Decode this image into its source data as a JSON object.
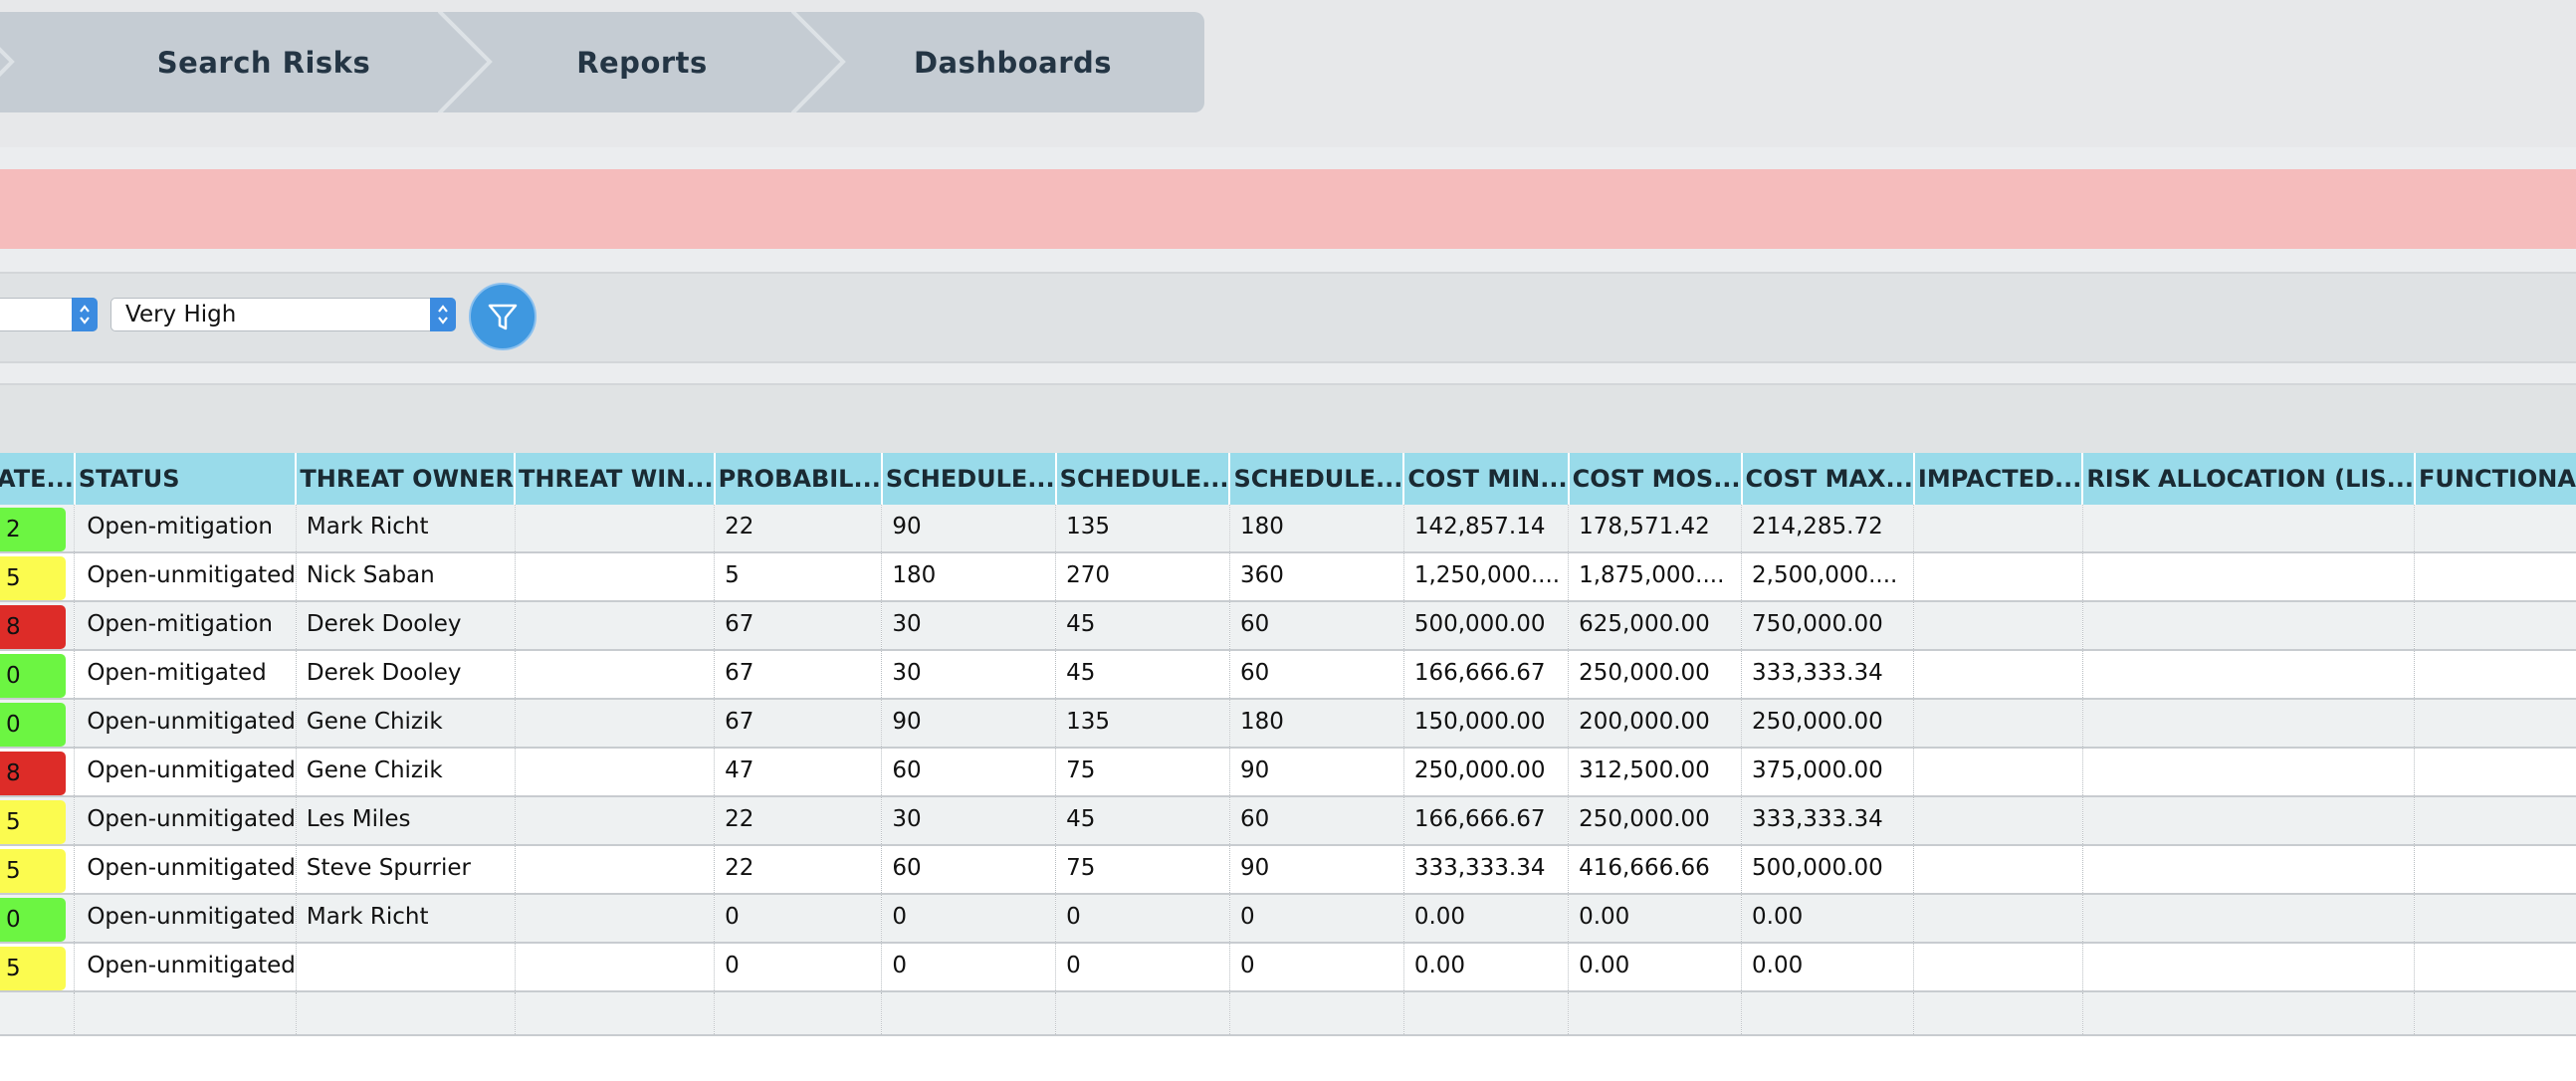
{
  "nav": {
    "items": [
      {
        "label": "Search Risks"
      },
      {
        "label": "Reports"
      },
      {
        "label": "Dashboards"
      }
    ]
  },
  "filters": {
    "first_select_value": "",
    "second_select_value": "Very High",
    "filter_button_icon": "filter-icon"
  },
  "colors": {
    "alert": "#f5bcbc",
    "header": "#99dbea",
    "green": "#6cf542",
    "yellow": "#fbfb4f",
    "red": "#dd2c28",
    "filter_button": "#3f98e0"
  },
  "table": {
    "headers": [
      "ATE...",
      "STATUS",
      "THREAT OWNER",
      "THREAT WIN...",
      "PROBABIL...",
      "SCHEDULE...",
      "SCHEDULE...",
      "SCHEDULE...",
      "COST MIN...",
      "COST MOS...",
      "COST MAX...",
      "IMPACTED...",
      "RISK ALLOCATION (LIS...",
      "FUNCTIONAL AS"
    ],
    "rows": [
      {
        "score": "2",
        "color": "green",
        "status": "Open-mitigation",
        "owner": "Mark Richt",
        "window": "",
        "prob": "22",
        "s1": "90",
        "s2": "135",
        "s3": "180",
        "c1": "142,857.14",
        "c2": "178,571.42",
        "c3": "214,285.72"
      },
      {
        "score": "5",
        "color": "yellow",
        "status": "Open-unmitigated",
        "owner": "Nick Saban",
        "window": "",
        "prob": "5",
        "s1": "180",
        "s2": "270",
        "s3": "360",
        "c1": "1,250,000....",
        "c2": "1,875,000....",
        "c3": "2,500,000...."
      },
      {
        "score": "8",
        "color": "red",
        "status": "Open-mitigation",
        "owner": "Derek Dooley",
        "window": "",
        "prob": "67",
        "s1": "30",
        "s2": "45",
        "s3": "60",
        "c1": "500,000.00",
        "c2": "625,000.00",
        "c3": "750,000.00"
      },
      {
        "score": "0",
        "color": "green",
        "status": "Open-mitigated",
        "owner": "Derek Dooley",
        "window": "",
        "prob": "67",
        "s1": "30",
        "s2": "45",
        "s3": "60",
        "c1": "166,666.67",
        "c2": "250,000.00",
        "c3": "333,333.34"
      },
      {
        "score": "0",
        "color": "green",
        "status": "Open-unmitigated",
        "owner": "Gene Chizik",
        "window": "",
        "prob": "67",
        "s1": "90",
        "s2": "135",
        "s3": "180",
        "c1": "150,000.00",
        "c2": "200,000.00",
        "c3": "250,000.00"
      },
      {
        "score": "8",
        "color": "red",
        "status": "Open-unmitigated",
        "owner": "Gene Chizik",
        "window": "",
        "prob": "47",
        "s1": "60",
        "s2": "75",
        "s3": "90",
        "c1": "250,000.00",
        "c2": "312,500.00",
        "c3": "375,000.00"
      },
      {
        "score": "5",
        "color": "yellow",
        "status": "Open-unmitigated",
        "owner": "Les Miles",
        "window": "",
        "prob": "22",
        "s1": "30",
        "s2": "45",
        "s3": "60",
        "c1": "166,666.67",
        "c2": "250,000.00",
        "c3": "333,333.34"
      },
      {
        "score": "5",
        "color": "yellow",
        "status": "Open-unmitigated",
        "owner": "Steve Spurrier",
        "window": "",
        "prob": "22",
        "s1": "60",
        "s2": "75",
        "s3": "90",
        "c1": "333,333.34",
        "c2": "416,666.66",
        "c3": "500,000.00"
      },
      {
        "score": "0",
        "color": "green",
        "status": "Open-unmitigated",
        "owner": "Mark Richt",
        "window": "",
        "prob": "0",
        "s1": "0",
        "s2": "0",
        "s3": "0",
        "c1": "0.00",
        "c2": "0.00",
        "c3": "0.00"
      },
      {
        "score": "5",
        "color": "yellow",
        "status": "Open-unmitigated",
        "owner": "",
        "window": "",
        "prob": "0",
        "s1": "0",
        "s2": "0",
        "s3": "0",
        "c1": "0.00",
        "c2": "0.00",
        "c3": "0.00"
      }
    ]
  }
}
